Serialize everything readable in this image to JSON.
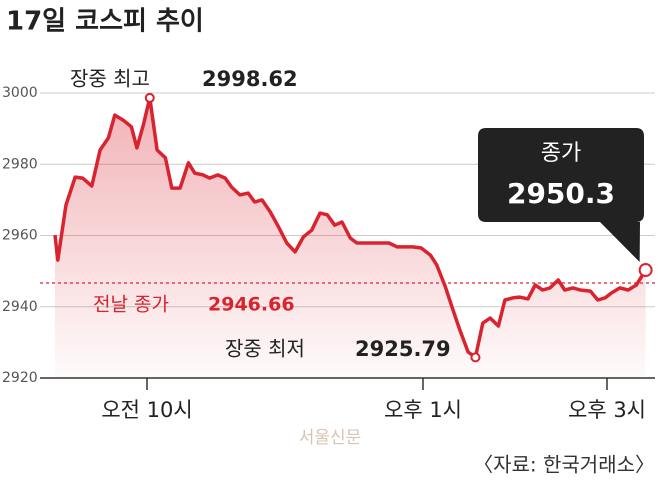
{
  "chart_data": {
    "type": "line",
    "title": "17일 코스피 추이",
    "x": [
      9.0,
      9.03,
      9.12,
      9.22,
      9.3,
      9.4,
      9.49,
      9.58,
      9.65,
      9.74,
      9.83,
      9.89,
      9.96,
      10.03,
      10.11,
      10.2,
      10.27,
      10.36,
      10.45,
      10.52,
      10.61,
      10.68,
      10.77,
      10.85,
      10.92,
      11.01,
      11.1,
      11.17,
      11.25,
      11.34,
      11.42,
      11.52,
      11.61,
      11.7,
      11.79,
      11.88,
      11.96,
      12.04,
      12.12,
      12.21,
      12.28,
      12.37,
      12.46,
      12.54,
      12.63,
      12.72,
      12.8,
      12.89,
      12.98,
      13.08,
      13.15,
      13.24,
      13.32,
      13.4,
      13.49,
      13.57,
      13.65,
      13.73,
      13.82,
      13.89,
      13.98,
      14.05,
      14.14,
      14.22,
      14.3,
      14.38,
      14.47,
      14.54,
      14.63,
      14.71,
      14.82,
      14.9,
      14.98,
      15.05,
      15.14,
      15.23,
      15.32,
      15.42
    ],
    "series": [
      {
        "name": "코스피",
        "color": "#d9232e",
        "values": [
          2960.1,
          2953.1,
          2968.6,
          2976.4,
          2976.1,
          2973.9,
          2984.0,
          2987.4,
          2993.8,
          2992.4,
          2990.5,
          2984.6,
          2991.0,
          2998.62,
          2984.0,
          2981.8,
          2973.3,
          2973.3,
          2980.4,
          2977.5,
          2977.0,
          2976.1,
          2977.0,
          2976.1,
          2973.6,
          2971.4,
          2971.9,
          2969.4,
          2970.0,
          2966.6,
          2962.9,
          2957.9,
          2955.4,
          2959.6,
          2961.5,
          2966.3,
          2965.8,
          2962.9,
          2963.8,
          2959.3,
          2957.9,
          2957.9,
          2957.9,
          2957.9,
          2957.9,
          2956.8,
          2956.8,
          2956.8,
          2956.5,
          2954.5,
          2951.7,
          2945.8,
          2939.6,
          2933.5,
          2927.3,
          2925.79,
          2935.4,
          2936.8,
          2934.6,
          2941.9,
          2942.5,
          2942.7,
          2942.2,
          2946.1,
          2944.7,
          2945.3,
          2947.5,
          2944.7,
          2945.3,
          2944.7,
          2944.4,
          2941.9,
          2942.5,
          2943.9,
          2945.3,
          2944.7,
          2946.1,
          2950.3
        ]
      }
    ],
    "xlim": [
      9,
      15.5
    ],
    "xticks": [
      {
        "value": 10,
        "label": "오전 10시"
      },
      {
        "value": 13,
        "label": "오후 1시"
      },
      {
        "value": 15,
        "label": "오후 3시"
      }
    ],
    "ylim": [
      2920,
      3000
    ],
    "yticks": [
      3000,
      2980,
      2960,
      2940,
      2920
    ],
    "grid": true,
    "annotations": [
      {
        "text": "장중 최고",
        "value": 2998.62
      },
      {
        "text": "장중 최저",
        "value": 2925.79
      }
    ],
    "reference": {
      "text": "전날 종가",
      "value": 2946.66
    },
    "close": {
      "text": "종가",
      "value": 2950.3
    },
    "watermark": "서울신문",
    "source": "〈자료: 한국거래소〉"
  }
}
